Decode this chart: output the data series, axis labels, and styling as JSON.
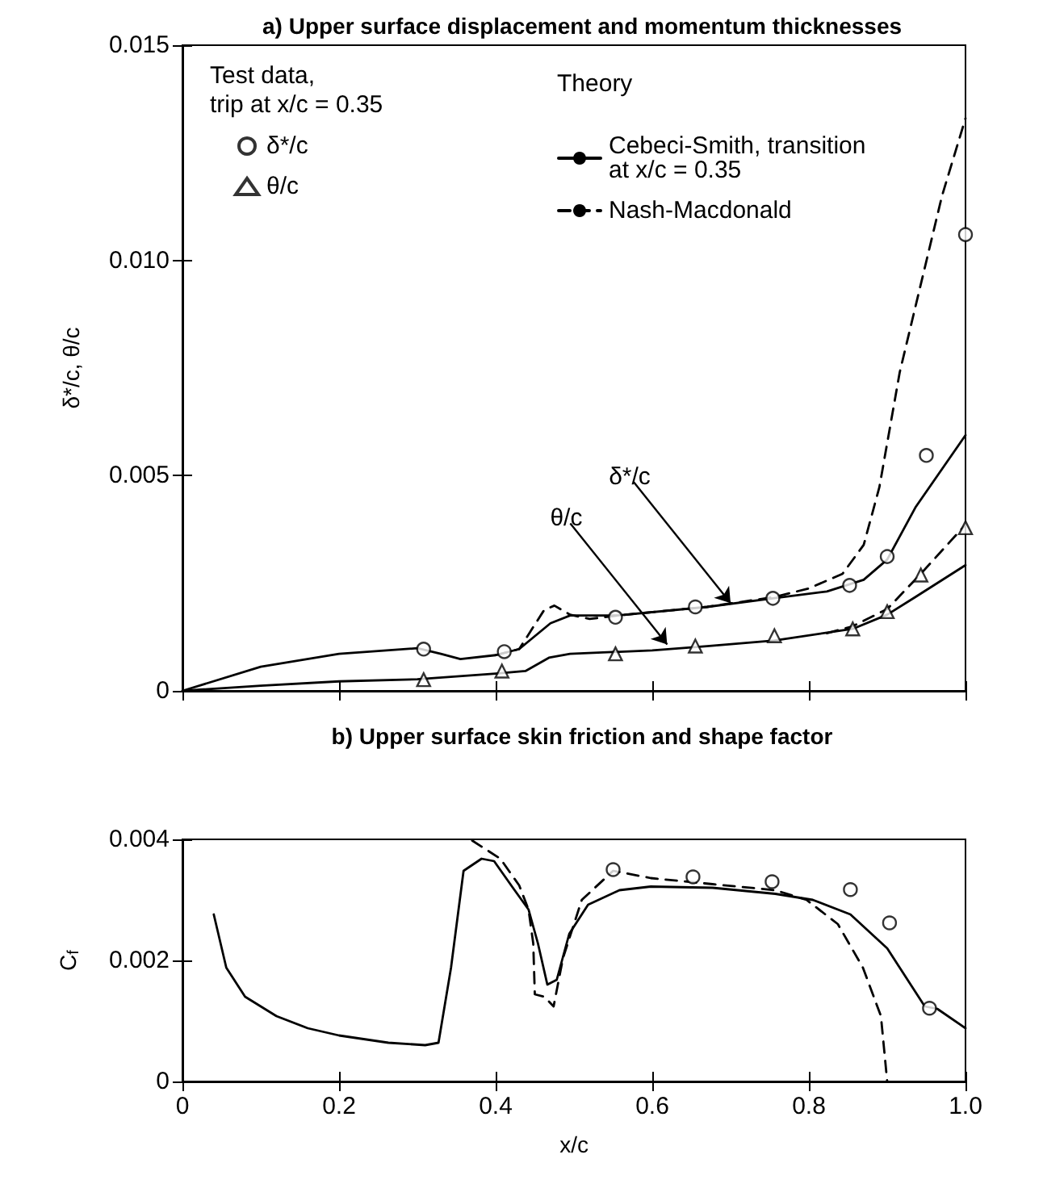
{
  "chart_data": [
    {
      "type": "line",
      "title": "a) Upper surface displacement and momentum thicknesses",
      "ylabel": "δ*/c, θ/c",
      "xlim": [
        0,
        1
      ],
      "xticks": [
        0,
        0.2,
        0.4,
        0.6,
        0.8,
        1
      ],
      "ylim": [
        0,
        0.015
      ],
      "yticks": [
        0,
        0.005,
        {
          "value": 0.01,
          "label": "0.010"
        },
        0.015
      ],
      "tick_labels": "y",
      "grid": false,
      "legend": "top",
      "annotations": [
        "Test data,\ntrip at x/c = 0.35",
        "Theory",
        {
          "text": "δ*/c",
          "x": 0.7,
          "y": 0.00204
        },
        {
          "text": "θ/c",
          "x": 0.619,
          "y": 0.00108
        }
      ],
      "series": [
        {
          "type": "scatter",
          "name": "δ*/c",
          "color": "#000000",
          "marker": "circle",
          "x": [
            0.308,
            0.411,
            0.553,
            0.655,
            0.754,
            0.852,
            0.9,
            0.95,
            1.0
          ],
          "values": [
            0.00097,
            0.00091,
            0.00171,
            0.00195,
            0.00215,
            0.00245,
            0.00312,
            0.00547,
            0.0106
          ]
        },
        {
          "type": "scatter",
          "name": "θ/c",
          "color": "#000000",
          "marker": "triangle",
          "x": [
            0.308,
            0.408,
            0.553,
            0.655,
            0.756,
            0.856,
            0.9,
            0.943,
            1.0
          ],
          "values": [
            0.00026,
            0.00046,
            0.00086,
            0.00104,
            0.00128,
            0.00144,
            0.00184,
            0.00269,
            0.00379
          ]
        },
        {
          "type": "line",
          "name": "Cebeci-Smith, transition\nat x/c = 0.35",
          "color": "#000000",
          "line_style": "solid",
          "marker": "none",
          "x": [
            0,
            0.1,
            0.2,
            0.3,
            0.33,
            0.355,
            0.4,
            0.43,
            0.47,
            0.495,
            0.555,
            0.67,
            0.754,
            0.823,
            0.87,
            0.9,
            0.936,
            1.0
          ],
          "values": [
            0,
            0.00056,
            0.00086,
            0.00099,
            0.00086,
            0.00074,
            0.00083,
            0.00097,
            0.00157,
            0.00175,
            0.00175,
            0.00195,
            0.00215,
            0.00231,
            0.00258,
            0.00305,
            0.00426,
            0.00594
          ]
        },
        {
          "type": "line",
          "name": "Nash-Macdonald",
          "color": "#000000",
          "line_style": "dashed",
          "marker": "none",
          "x": [
            0.4,
            0.43,
            0.462,
            0.475,
            0.495,
            0.52,
            0.555,
            0.67,
            0.756,
            0.8,
            0.843,
            0.87,
            0.89,
            0.916,
            0.936,
            0.97,
            1.0
          ],
          "values": [
            0.00083,
            0.00097,
            0.00188,
            0.00198,
            0.00177,
            0.00167,
            0.00175,
            0.00195,
            0.00218,
            0.00238,
            0.00272,
            0.00339,
            0.00473,
            0.0074,
            0.00892,
            0.0115,
            0.0133
          ]
        },
        {
          "color": "#000000",
          "line_style": "solid",
          "marker": "none",
          "x": [
            0,
            0.1,
            0.2,
            0.3,
            0.4,
            0.438,
            0.468,
            0.495,
            0.6,
            0.67,
            0.756,
            0.856,
            0.9,
            0.936,
            1.0
          ],
          "values": [
            0,
            0.00012,
            0.00022,
            0.00027,
            0.0004,
            0.00046,
            0.00077,
            0.00086,
            0.00094,
            0.00104,
            0.00117,
            0.00144,
            0.00177,
            0.00218,
            0.00292
          ]
        },
        {
          "color": "#000000",
          "line_style": "dashed",
          "marker": "none",
          "x": [
            0.823,
            0.856,
            0.9,
            0.943,
            1.0
          ],
          "values": [
            0.00134,
            0.0015,
            0.0019,
            0.00272,
            0.00386
          ]
        }
      ]
    },
    {
      "type": "line",
      "title": "b) Upper surface skin friction and shape factor",
      "xlabel": "x/c",
      "ylabel": "C$_{f}$",
      "xlim": [
        0,
        1
      ],
      "xticks": [
        0,
        0.2,
        0.4,
        0.6,
        0.8,
        {
          "value": 1,
          "label": "1.0"
        }
      ],
      "ylim": [
        0,
        0.004
      ],
      "yticks": [
        0,
        0.002,
        0.004
      ],
      "grid": false,
      "series": [
        {
          "type": "scatter",
          "color": "#000000",
          "marker": "circle",
          "x": [
            0.55,
            0.652,
            0.753,
            0.853,
            0.903,
            0.954
          ],
          "values": [
            0.0035,
            0.00338,
            0.0033,
            0.00317,
            0.00262,
            0.00121
          ]
        },
        {
          "color": "#000000",
          "line_style": "solid",
          "marker": "none",
          "x": [
            0.04,
            0.056,
            0.08,
            0.12,
            0.16,
            0.2,
            0.263,
            0.31,
            0.327,
            0.343,
            0.359,
            0.382,
            0.398,
            0.422,
            0.442,
            0.454,
            0.466,
            0.478,
            0.494,
            0.518,
            0.558,
            0.598,
            0.677,
            0.757,
            0.805,
            0.853,
            0.9,
            0.932,
            0.948,
            0.964,
            1.0
          ],
          "values": [
            0.00276,
            0.00188,
            0.0014,
            0.00108,
            0.00088,
            0.00076,
            0.00064,
            0.0006,
            0.00064,
            0.00188,
            0.00348,
            0.00368,
            0.00364,
            0.0032,
            0.00284,
            0.00228,
            0.0016,
            0.00168,
            0.00244,
            0.00292,
            0.00316,
            0.00322,
            0.0032,
            0.0031,
            0.003,
            0.00276,
            0.0022,
            0.00156,
            0.00124,
            0.0012,
            0.00088
          ]
        },
        {
          "color": "#000000",
          "line_style": "dashed",
          "marker": "none",
          "x": [
            0.37,
            0.406,
            0.43,
            0.442,
            0.448,
            0.45,
            0.462,
            0.474,
            0.486,
            0.51,
            0.55,
            0.598,
            0.677,
            0.757,
            0.797,
            0.837,
            0.869,
            0.892,
            0.9
          ],
          "values": [
            0.00398,
            0.00368,
            0.00324,
            0.00284,
            0.00228,
            0.00144,
            0.0014,
            0.00124,
            0.00204,
            0.003,
            0.00348,
            0.00336,
            0.00326,
            0.00316,
            0.003,
            0.0026,
            0.00188,
            0.00108,
            0
          ]
        }
      ]
    }
  ]
}
